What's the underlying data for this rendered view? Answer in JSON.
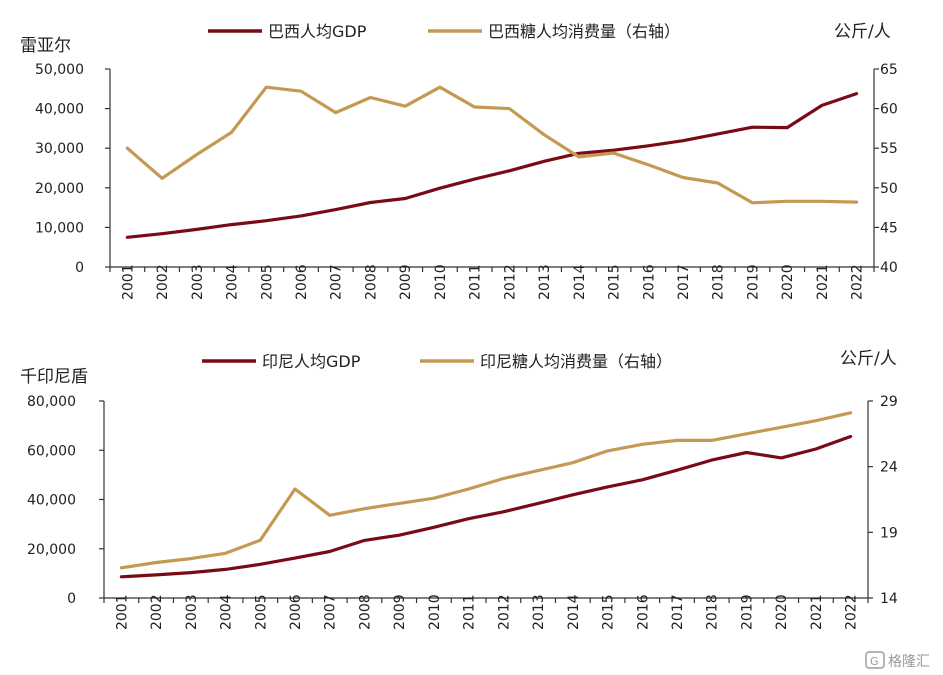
{
  "colors": {
    "gdp": "#7a0a14",
    "sugar": "#c49a52",
    "axis": "#333333"
  },
  "watermark": {
    "text": "格隆汇",
    "icon": "g-logo-icon"
  },
  "chart_data": [
    {
      "type": "line",
      "left_unit": "雷亚尔",
      "right_unit": "公斤/人",
      "categories": [
        "2001",
        "2002",
        "2003",
        "2004",
        "2005",
        "2006",
        "2007",
        "2008",
        "2009",
        "2010",
        "2011",
        "2012",
        "2013",
        "2014",
        "2015",
        "2016",
        "2017",
        "2018",
        "2019",
        "2020",
        "2021",
        "2022"
      ],
      "y_left": {
        "lim": [
          0,
          50000
        ],
        "ticks": [
          0,
          10000,
          20000,
          30000,
          40000,
          50000
        ],
        "tick_labels": [
          "0",
          "10,000",
          "20,000",
          "30,000",
          "40,000",
          "50,000"
        ]
      },
      "y_right": {
        "lim": [
          40,
          65
        ],
        "ticks": [
          40,
          45,
          50,
          55,
          60,
          65
        ],
        "tick_labels": [
          "40",
          "45",
          "50",
          "55",
          "60",
          "65"
        ]
      },
      "legend_position": "top-center",
      "series": [
        {
          "name": "巴西人均GDP",
          "axis": "left",
          "color_key": "gdp",
          "values": [
            7500,
            8400,
            9500,
            10700,
            11700,
            12900,
            14500,
            16300,
            17300,
            19900,
            22200,
            24300,
            26700,
            28700,
            29500,
            30600,
            31900,
            33600,
            35300,
            35200,
            40800,
            43800
          ]
        },
        {
          "name": "巴西糖人均消费量（右轴）",
          "axis": "right",
          "color_key": "sugar",
          "values": [
            55.0,
            51.2,
            54.2,
            57.0,
            62.7,
            62.2,
            59.5,
            61.4,
            60.3,
            62.7,
            60.2,
            60.0,
            56.7,
            53.9,
            54.4,
            52.9,
            51.3,
            50.6,
            48.1,
            48.3,
            48.3,
            48.2
          ]
        }
      ]
    },
    {
      "type": "line",
      "left_unit": "千印尼盾",
      "right_unit": "公斤/人",
      "categories": [
        "2001",
        "2002",
        "2003",
        "2004",
        "2005",
        "2006",
        "2007",
        "2008",
        "2009",
        "2010",
        "2011",
        "2012",
        "2013",
        "2014",
        "2015",
        "2016",
        "2017",
        "2018",
        "2019",
        "2020",
        "2021",
        "2022"
      ],
      "y_left": {
        "lim": [
          0,
          80000
        ],
        "ticks": [
          0,
          20000,
          40000,
          60000,
          80000
        ],
        "tick_labels": [
          "0",
          "20,000",
          "40,000",
          "60,000",
          "80,000"
        ]
      },
      "y_right": {
        "lim": [
          14,
          29
        ],
        "ticks": [
          14,
          19,
          24,
          29
        ],
        "tick_labels": [
          "14",
          "19",
          "24",
          "29"
        ]
      },
      "legend_position": "top-center",
      "series": [
        {
          "name": "印尼人均GDP",
          "axis": "left",
          "color_key": "gdp",
          "values": [
            8600,
            9400,
            10300,
            11600,
            13700,
            16200,
            18900,
            23400,
            25500,
            28700,
            32200,
            35000,
            38400,
            41900,
            45100,
            48000,
            51900,
            56000,
            59100,
            56900,
            60500,
            65600
          ]
        },
        {
          "name": "印尼糖人均消费量（右轴）",
          "axis": "right",
          "color_key": "sugar",
          "values": [
            16.3,
            16.7,
            17.0,
            17.4,
            18.4,
            22.3,
            20.3,
            20.8,
            21.2,
            21.6,
            22.3,
            23.1,
            23.7,
            24.3,
            25.2,
            25.7,
            26.0,
            26.0,
            26.5,
            27.0,
            27.5,
            28.1
          ]
        }
      ]
    }
  ]
}
